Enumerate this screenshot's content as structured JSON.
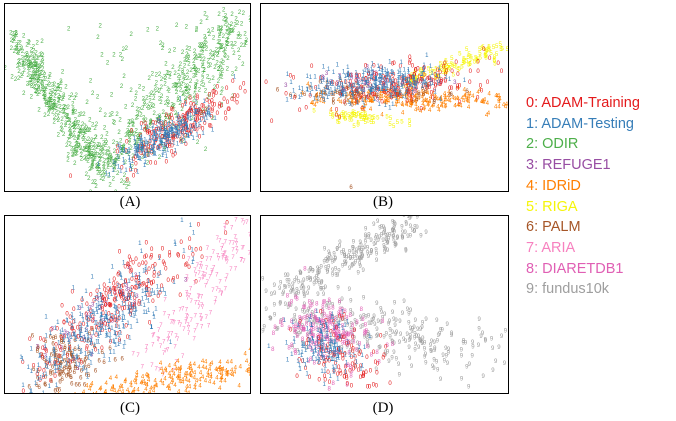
{
  "chart_data": {
    "type": "scatter",
    "legend_placement": "right",
    "legend": [
      {
        "id": "0",
        "label": "0: ADAM-Training",
        "color": "#e41a1c"
      },
      {
        "id": "1",
        "label": "1: ADAM-Testing",
        "color": "#377eb8"
      },
      {
        "id": "2",
        "label": "2: ODIR",
        "color": "#4daf4a"
      },
      {
        "id": "3",
        "label": "3: REFUGE1",
        "color": "#984ea3"
      },
      {
        "id": "4",
        "label": "4: IDRiD",
        "color": "#ff7f00"
      },
      {
        "id": "5",
        "label": "5: RIGA",
        "color": "#f5f50a"
      },
      {
        "id": "6",
        "label": "6: PALM",
        "color": "#a65628"
      },
      {
        "id": "7",
        "label": "7: ARIA",
        "color": "#f781bf"
      },
      {
        "id": "8",
        "label": "8: DIARETDB1",
        "color": "#e05fb4"
      },
      {
        "id": "9",
        "label": "9: fundus10k",
        "color": "#9e9e9e"
      }
    ],
    "panels": [
      {
        "caption": "(A)",
        "series": [
          "2",
          "0",
          "1"
        ]
      },
      {
        "caption": "(B)",
        "series": [
          "5",
          "4",
          "6",
          "3",
          "0",
          "1"
        ]
      },
      {
        "caption": "(C)",
        "series": [
          "7",
          "4",
          "6",
          "3",
          "0",
          "1"
        ]
      },
      {
        "caption": "(D)",
        "series": [
          "9",
          "8",
          "0",
          "1"
        ]
      }
    ]
  }
}
